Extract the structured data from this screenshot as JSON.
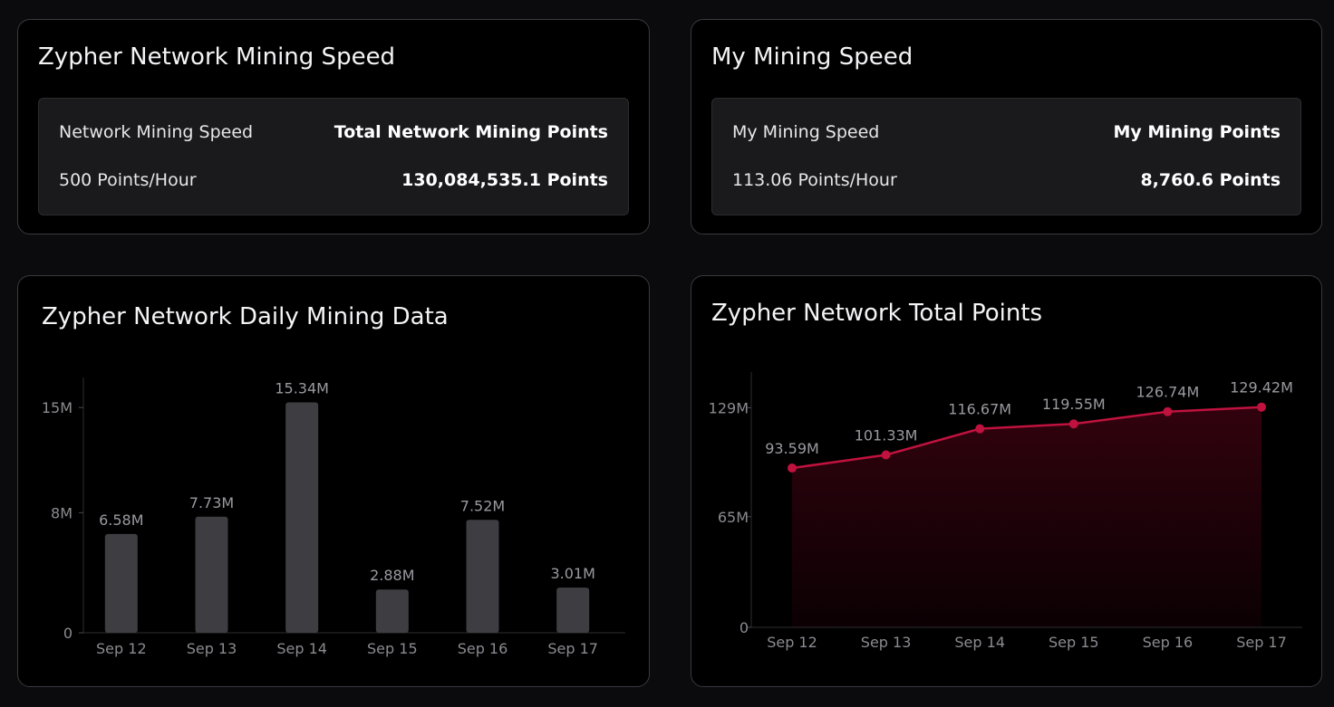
{
  "network_speed_card": {
    "title": "Zypher Network Mining Speed",
    "speed_label": "Network Mining Speed",
    "speed_value": "500 Points/Hour",
    "points_label": "Total Network Mining Points",
    "points_value": "130,084,535.1 Points"
  },
  "my_speed_card": {
    "title": "My Mining Speed",
    "speed_label": "My Mining Speed",
    "speed_value": "113.06 Points/Hour",
    "points_label": "My Mining Points",
    "points_value": "8,760.6 Points"
  },
  "colors": {
    "bar": "#3e3d42",
    "line": "#c0123f",
    "area": "#5a0419",
    "axis_text": "#8b8a90",
    "label_text": "#9a99a0"
  },
  "chart_data": [
    {
      "type": "bar",
      "title": "Zypher Network Daily Mining Data",
      "categories": [
        "Sep 12",
        "Sep 13",
        "Sep 14",
        "Sep 15",
        "Sep 16",
        "Sep 17"
      ],
      "values": [
        6.58,
        7.73,
        15.34,
        2.88,
        7.52,
        3.01
      ],
      "value_labels": [
        "6.58M",
        "7.73M",
        "15.34M",
        "2.88M",
        "7.52M",
        "3.01M"
      ],
      "unit": "M",
      "yticks": [
        0,
        8,
        15
      ],
      "ytick_labels": [
        "0",
        "8M",
        "15M"
      ],
      "ylim": [
        0,
        17
      ],
      "grid": false
    },
    {
      "type": "area",
      "title": "Zypher Network Total Points",
      "categories": [
        "Sep 12",
        "Sep 13",
        "Sep 14",
        "Sep 15",
        "Sep 16",
        "Sep 17"
      ],
      "values": [
        93.59,
        101.33,
        116.67,
        119.55,
        126.74,
        129.42
      ],
      "value_labels": [
        "93.59M",
        "101.33M",
        "116.67M",
        "119.55M",
        "126.74M",
        "129.42M"
      ],
      "unit": "M",
      "yticks": [
        0,
        65,
        129
      ],
      "ytick_labels": [
        "0",
        "65M",
        "129M"
      ],
      "ylim": [
        0,
        150
      ],
      "grid": false
    }
  ]
}
